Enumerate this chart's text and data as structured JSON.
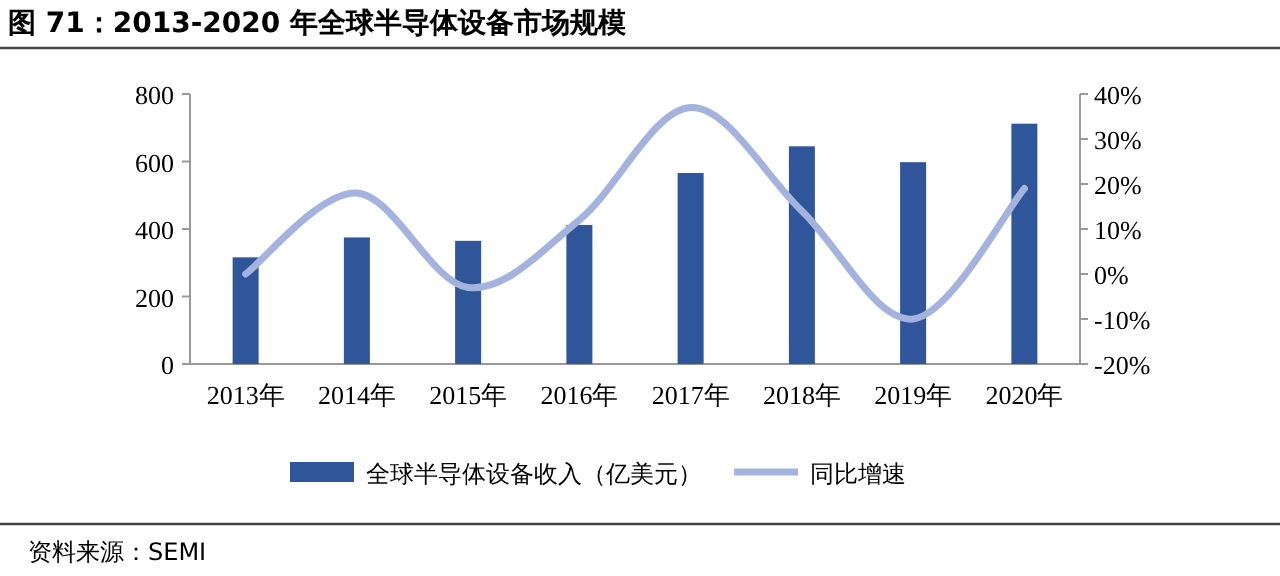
{
  "chart_data": {
    "type": "bar",
    "title": "图 71：2013-2020 年全球半导体设备市场规模",
    "categories": [
      "2013年",
      "2014年",
      "2015年",
      "2016年",
      "2017年",
      "2018年",
      "2019年",
      "2020年"
    ],
    "series": [
      {
        "name": "全球半导体设备收入（亿美元）",
        "color": "#2f559b",
        "values": [
          316,
          375,
          365,
          412,
          566,
          645,
          598,
          712
        ]
      },
      {
        "name": "同比增速",
        "type": "line",
        "axis": "y2",
        "color": "#a3b3de",
        "values": [
          0,
          18,
          -3,
          12,
          37,
          14,
          -10,
          19
        ]
      }
    ],
    "ylim": [
      0,
      800
    ],
    "yticks": [
      0,
      200,
      400,
      600,
      800
    ],
    "y2lim": [
      -20,
      40
    ],
    "y2ticks": [
      {
        "value": -20,
        "label": "-20%"
      },
      {
        "value": -10,
        "label": "-10%"
      },
      {
        "value": 0,
        "label": "0%"
      },
      {
        "value": 10,
        "label": "10%"
      },
      {
        "value": 20,
        "label": "20%"
      },
      {
        "value": 30,
        "label": "30%"
      },
      {
        "value": 40,
        "label": "40%"
      }
    ],
    "legend": "bottom",
    "annotations": [
      "资料来源：SEMI"
    ]
  }
}
